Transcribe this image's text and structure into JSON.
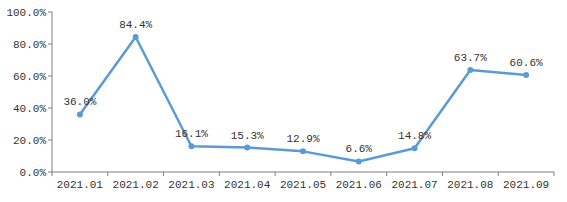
{
  "chart_data": {
    "type": "line",
    "categories": [
      "2021.01",
      "2021.02",
      "2021.03",
      "2021.04",
      "2021.05",
      "2021.06",
      "2021.07",
      "2021.08",
      "2021.09"
    ],
    "values": [
      36.0,
      84.4,
      16.1,
      15.3,
      12.9,
      6.6,
      14.8,
      63.7,
      60.6
    ],
    "value_labels": [
      "36.0%",
      "84.4%",
      "16.1%",
      "15.3%",
      "12.9%",
      "6.6%",
      "14.8%",
      "63.7%",
      "60.6%"
    ],
    "color": "#5b9bd5",
    "marker": "circle",
    "ylim": [
      0,
      100
    ],
    "yticks": [
      {
        "value": 0,
        "label": "0.0%"
      },
      {
        "value": 20,
        "label": "20.0%"
      },
      {
        "value": 40,
        "label": "40.0%"
      },
      {
        "value": 60,
        "label": "60.0%"
      },
      {
        "value": 80,
        "label": "80.0%"
      },
      {
        "value": 100,
        "label": "100.0%"
      }
    ],
    "grid": false,
    "data_labels": true
  }
}
